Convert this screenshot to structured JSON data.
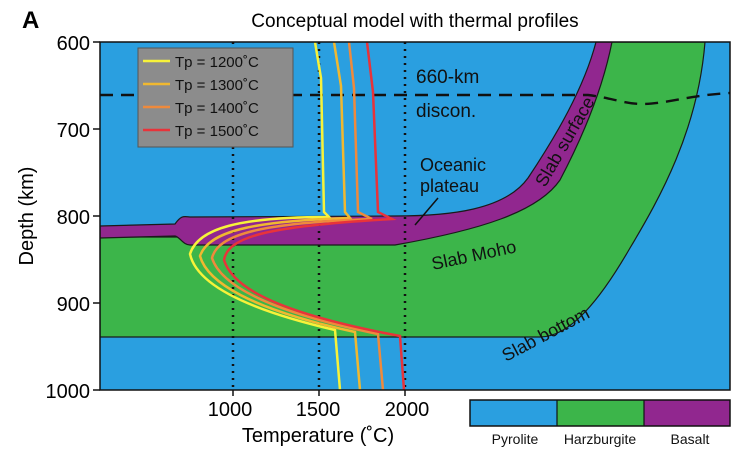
{
  "panel_label": "A",
  "title": "Conceptual model with thermal profiles",
  "y_axis": {
    "label": "Depth (km)",
    "range": [
      600,
      1000
    ],
    "ticks": [
      "600",
      "700",
      "800",
      "900",
      "1000"
    ]
  },
  "x_axis": {
    "label": "Temperature (˚C)",
    "range": [
      400,
      2300
    ],
    "ticks": [
      "1000",
      "1500",
      "2000"
    ],
    "gridlines": [
      1000,
      1500,
      2000
    ]
  },
  "legend": {
    "entries": [
      {
        "label": "Tp = 1200˚C",
        "color": "#f7f23a"
      },
      {
        "label": "Tp = 1300˚C",
        "color": "#f0b830"
      },
      {
        "label": "Tp = 1400˚C",
        "color": "#ef8a3c"
      },
      {
        "label": "Tp = 1500˚C",
        "color": "#e8333a"
      }
    ]
  },
  "annotations": {
    "discontinuity_line1": "660-km",
    "discontinuity_line2": "discon.",
    "plateau_line1": "Oceanic",
    "plateau_line2": "plateau",
    "slab_surface": "Slab surface",
    "slab_moho": "Slab Moho",
    "slab_bottom": "Slab bottom"
  },
  "material_legend": [
    {
      "label": "Pyrolite",
      "color": "#2a9fe0"
    },
    {
      "label": "Harzburgite",
      "color": "#3cb54a"
    },
    {
      "label": "Basalt",
      "color": "#91278f"
    }
  ],
  "colors": {
    "pyrolite": "#2a9fe0",
    "harzburgite": "#3cb54a",
    "basalt": "#91278f",
    "legend_bg": "#8c8c8c"
  }
}
